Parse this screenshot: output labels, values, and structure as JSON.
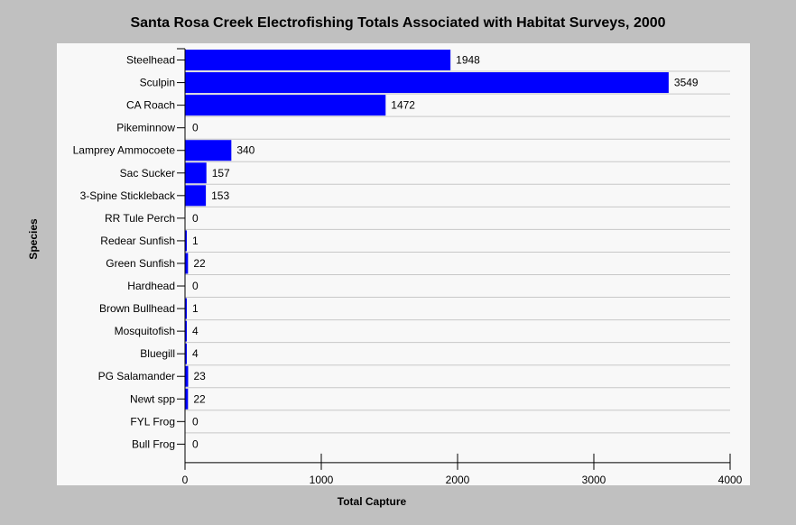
{
  "chart_data": {
    "type": "bar",
    "orientation": "horizontal",
    "title": "Santa Rosa Creek Electrofishing Totals Associated with Habitat Surveys, 2000",
    "xlabel": "Total Capture",
    "ylabel": "Species",
    "categories": [
      "Steelhead",
      "Sculpin",
      "CA Roach",
      "Pikeminnow",
      "Lamprey Ammocoete",
      "Sac Sucker",
      "3-Spine Stickleback",
      "RR Tule Perch",
      "Redear Sunfish",
      "Green Sunfish",
      "Hardhead",
      "Brown Bullhead",
      "Mosquitofish",
      "Bluegill",
      "PG Salamander",
      "Newt spp",
      "FYL Frog",
      "Bull Frog"
    ],
    "values": [
      1948,
      3549,
      1472,
      0,
      340,
      157,
      153,
      0,
      1,
      22,
      0,
      1,
      4,
      4,
      23,
      22,
      0,
      0
    ],
    "data_labels": [
      "1948",
      "3549",
      "1472",
      "0",
      "340",
      "157",
      "153",
      "0",
      "1",
      "22",
      "0",
      "1",
      "4",
      "4",
      "23",
      "22",
      "0",
      "0"
    ],
    "xlim": [
      0,
      4000
    ],
    "xticks": [
      "0",
      "1000",
      "2000",
      "3000",
      "4000"
    ],
    "grid": "horizontal",
    "legend": "none",
    "colors": {
      "bar": "#0000ff",
      "plot_background": "#f8f8f8",
      "page_background": "#c0c0c0",
      "grid": "#c8c8c8"
    }
  }
}
